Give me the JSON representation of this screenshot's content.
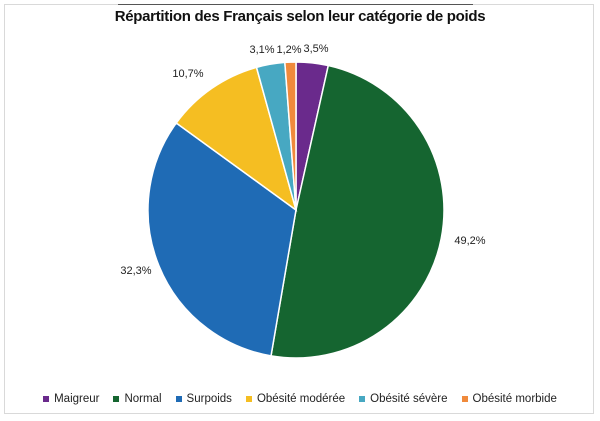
{
  "chart_data": {
    "type": "pie",
    "title": "Répartition des Français selon leur catégorie de poids",
    "slices": [
      {
        "name": "Maigreur",
        "value": 3.5,
        "label": "3,5%",
        "color": "#6a2a8c"
      },
      {
        "name": "Normal",
        "value": 49.2,
        "label": "49,2%",
        "color": "#156530"
      },
      {
        "name": "Surpoids",
        "value": 32.3,
        "label": "32,3%",
        "color": "#1f6bb5"
      },
      {
        "name": "Obésité modérée",
        "value": 10.7,
        "label": "10,7%",
        "color": "#f5be22"
      },
      {
        "name": "Obésité sévère",
        "value": 3.1,
        "label": "3,1%",
        "color": "#47a8c2"
      },
      {
        "name": "Obésité morbide",
        "value": 1.2,
        "label": "1,2%",
        "color": "#f08a3c"
      }
    ],
    "legend_position": "bottom"
  }
}
